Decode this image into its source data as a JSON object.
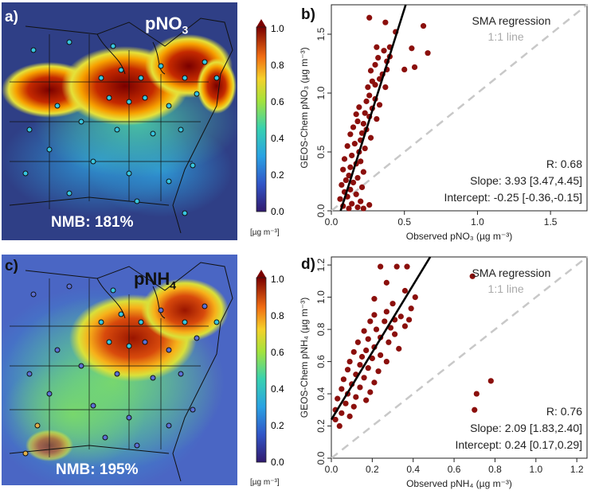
{
  "panels": {
    "a": {
      "letter": "a)",
      "title": "pNO",
      "title_sub": "3",
      "nmb": "NMB: 181%",
      "colorbar": {
        "ticks": [
          "1.0",
          "0.8",
          "0.6",
          "0.4",
          "0.2",
          "0.0"
        ],
        "unit": "[µg m⁻³]"
      }
    },
    "c": {
      "letter": "c)",
      "title": "pNH",
      "title_sub": "4",
      "nmb": "NMB: 195%",
      "colorbar": {
        "ticks": [
          "1.0",
          "0.8",
          "0.6",
          "0.4",
          "0.2",
          "0.0"
        ],
        "unit": "[µg m⁻³]"
      }
    },
    "b": {
      "letter": "b)"
    },
    "d": {
      "letter": "d)"
    }
  },
  "chart_data": [
    {
      "id": "b",
      "type": "scatter",
      "title": "",
      "xlabel": "Observed pNO₃ (µg m⁻³)",
      "ylabel": "GEOS-Chem pNO₃ (µg m⁻³)",
      "xlim": [
        0,
        1.75
      ],
      "ylim": [
        0,
        1.75
      ],
      "xticks": [
        "0.0",
        "0.5",
        "1.0",
        "1.5"
      ],
      "yticks": [
        "0.0",
        "0.5",
        "1.0",
        "1.5"
      ],
      "legend": [
        "SMA regression",
        "1:1 line"
      ],
      "stats": [
        "R: 0.68",
        "Slope: 3.93 [3.47,4.45]",
        "Intercept: -0.25 [-0.36,-0.15]"
      ],
      "regression": {
        "slope": 3.93,
        "intercept": -0.25
      },
      "points": [
        [
          0.26,
          1.64
        ],
        [
          0.37,
          1.6
        ],
        [
          0.63,
          1.57
        ],
        [
          0.44,
          1.52
        ],
        [
          0.66,
          1.34
        ],
        [
          0.31,
          1.39
        ],
        [
          0.36,
          1.36
        ],
        [
          0.4,
          1.39
        ],
        [
          0.55,
          1.38
        ],
        [
          0.32,
          1.3
        ],
        [
          0.4,
          1.31
        ],
        [
          0.38,
          1.27
        ],
        [
          0.57,
          1.22
        ],
        [
          0.5,
          1.2
        ],
        [
          0.38,
          1.2
        ],
        [
          0.3,
          1.24
        ],
        [
          0.27,
          1.19
        ],
        [
          0.35,
          1.16
        ],
        [
          0.33,
          1.12
        ],
        [
          0.28,
          1.1
        ],
        [
          0.3,
          1.07
        ],
        [
          0.37,
          1.05
        ],
        [
          0.25,
          1.05
        ],
        [
          0.26,
          0.98
        ],
        [
          0.3,
          0.95
        ],
        [
          0.24,
          0.93
        ],
        [
          0.33,
          0.9
        ],
        [
          0.19,
          0.88
        ],
        [
          0.28,
          0.87
        ],
        [
          0.23,
          0.83
        ],
        [
          0.17,
          0.82
        ],
        [
          0.26,
          0.8
        ],
        [
          0.31,
          0.78
        ],
        [
          0.18,
          0.76
        ],
        [
          0.22,
          0.74
        ],
        [
          0.15,
          0.71
        ],
        [
          0.24,
          0.69
        ],
        [
          0.21,
          0.66
        ],
        [
          0.13,
          0.65
        ],
        [
          0.27,
          0.62
        ],
        [
          0.2,
          0.6
        ],
        [
          0.16,
          0.57
        ],
        [
          0.11,
          0.55
        ],
        [
          0.23,
          0.53
        ],
        [
          0.19,
          0.5
        ],
        [
          0.14,
          0.47
        ],
        [
          0.09,
          0.44
        ],
        [
          0.2,
          0.42
        ],
        [
          0.17,
          0.4
        ],
        [
          0.13,
          0.37
        ],
        [
          0.08,
          0.35
        ],
        [
          0.22,
          0.33
        ],
        [
          0.12,
          0.3
        ],
        [
          0.18,
          0.28
        ],
        [
          0.1,
          0.26
        ],
        [
          0.15,
          0.24
        ],
        [
          0.07,
          0.22
        ],
        [
          0.21,
          0.2
        ],
        [
          0.13,
          0.18
        ],
        [
          0.09,
          0.16
        ],
        [
          0.17,
          0.14
        ],
        [
          0.11,
          0.12
        ],
        [
          0.06,
          0.1
        ],
        [
          0.2,
          0.08
        ],
        [
          0.14,
          0.06
        ],
        [
          0.26,
          0.05
        ],
        [
          0.08,
          0.04
        ],
        [
          0.18,
          0.03
        ],
        [
          0.22,
          0.02
        ],
        [
          0.12,
          0.02
        ]
      ]
    },
    {
      "id": "d",
      "type": "scatter",
      "title": "",
      "xlabel": "Observed pNH₄ (µg m⁻³)",
      "ylabel": "GEOS-Chem pNH₄ (µg m⁻³)",
      "xlim": [
        0,
        1.25
      ],
      "ylim": [
        0,
        1.25
      ],
      "xticks": [
        "0.0",
        "0.2",
        "0.4",
        "0.6",
        "0.8",
        "1.0",
        "1.2"
      ],
      "yticks": [
        "0.0",
        "0.2",
        "0.4",
        "0.6",
        "0.8",
        "1.0",
        "1.2"
      ],
      "legend": [
        "SMA regression",
        "1:1 line"
      ],
      "stats": [
        "R: 0.76",
        "Slope: 2.09 [1.83,2.40]",
        "Intercept: 0.24 [0.17,0.29]"
      ],
      "regression": {
        "slope": 2.09,
        "intercept": 0.24
      },
      "points": [
        [
          0.24,
          1.19
        ],
        [
          0.32,
          1.19
        ],
        [
          0.37,
          1.19
        ],
        [
          0.69,
          1.13
        ],
        [
          0.27,
          1.09
        ],
        [
          0.36,
          1.04
        ],
        [
          0.41,
          1.0
        ],
        [
          0.21,
          0.99
        ],
        [
          0.3,
          0.96
        ],
        [
          0.39,
          0.93
        ],
        [
          0.27,
          0.91
        ],
        [
          0.21,
          0.89
        ],
        [
          0.34,
          0.88
        ],
        [
          0.38,
          0.86
        ],
        [
          0.31,
          0.86
        ],
        [
          0.26,
          0.85
        ],
        [
          0.19,
          0.85
        ],
        [
          0.36,
          0.82
        ],
        [
          0.29,
          0.81
        ],
        [
          0.22,
          0.8
        ],
        [
          0.16,
          0.79
        ],
        [
          0.31,
          0.77
        ],
        [
          0.24,
          0.75
        ],
        [
          0.18,
          0.74
        ],
        [
          0.28,
          0.72
        ],
        [
          0.13,
          0.72
        ],
        [
          0.21,
          0.69
        ],
        [
          0.33,
          0.68
        ],
        [
          0.17,
          0.67
        ],
        [
          0.11,
          0.66
        ],
        [
          0.24,
          0.64
        ],
        [
          0.15,
          0.63
        ],
        [
          0.2,
          0.62
        ],
        [
          0.09,
          0.6
        ],
        [
          0.27,
          0.6
        ],
        [
          0.14,
          0.58
        ],
        [
          0.18,
          0.56
        ],
        [
          0.08,
          0.55
        ],
        [
          0.23,
          0.54
        ],
        [
          0.12,
          0.52
        ],
        [
          0.16,
          0.5
        ],
        [
          0.06,
          0.49
        ],
        [
          0.21,
          0.47
        ],
        [
          0.1,
          0.46
        ],
        [
          0.14,
          0.44
        ],
        [
          0.05,
          0.43
        ],
        [
          0.19,
          0.41
        ],
        [
          0.08,
          0.4
        ],
        [
          0.12,
          0.38
        ],
        [
          0.03,
          0.37
        ],
        [
          0.17,
          0.36
        ],
        [
          0.07,
          0.34
        ],
        [
          0.11,
          0.32
        ],
        [
          0.02,
          0.3
        ],
        [
          0.05,
          0.28
        ],
        [
          0.09,
          0.26
        ],
        [
          0.02,
          0.24
        ],
        [
          0.78,
          0.48
        ],
        [
          0.71,
          0.4
        ],
        [
          0.7,
          0.3
        ],
        [
          0.04,
          0.2
        ]
      ]
    }
  ]
}
